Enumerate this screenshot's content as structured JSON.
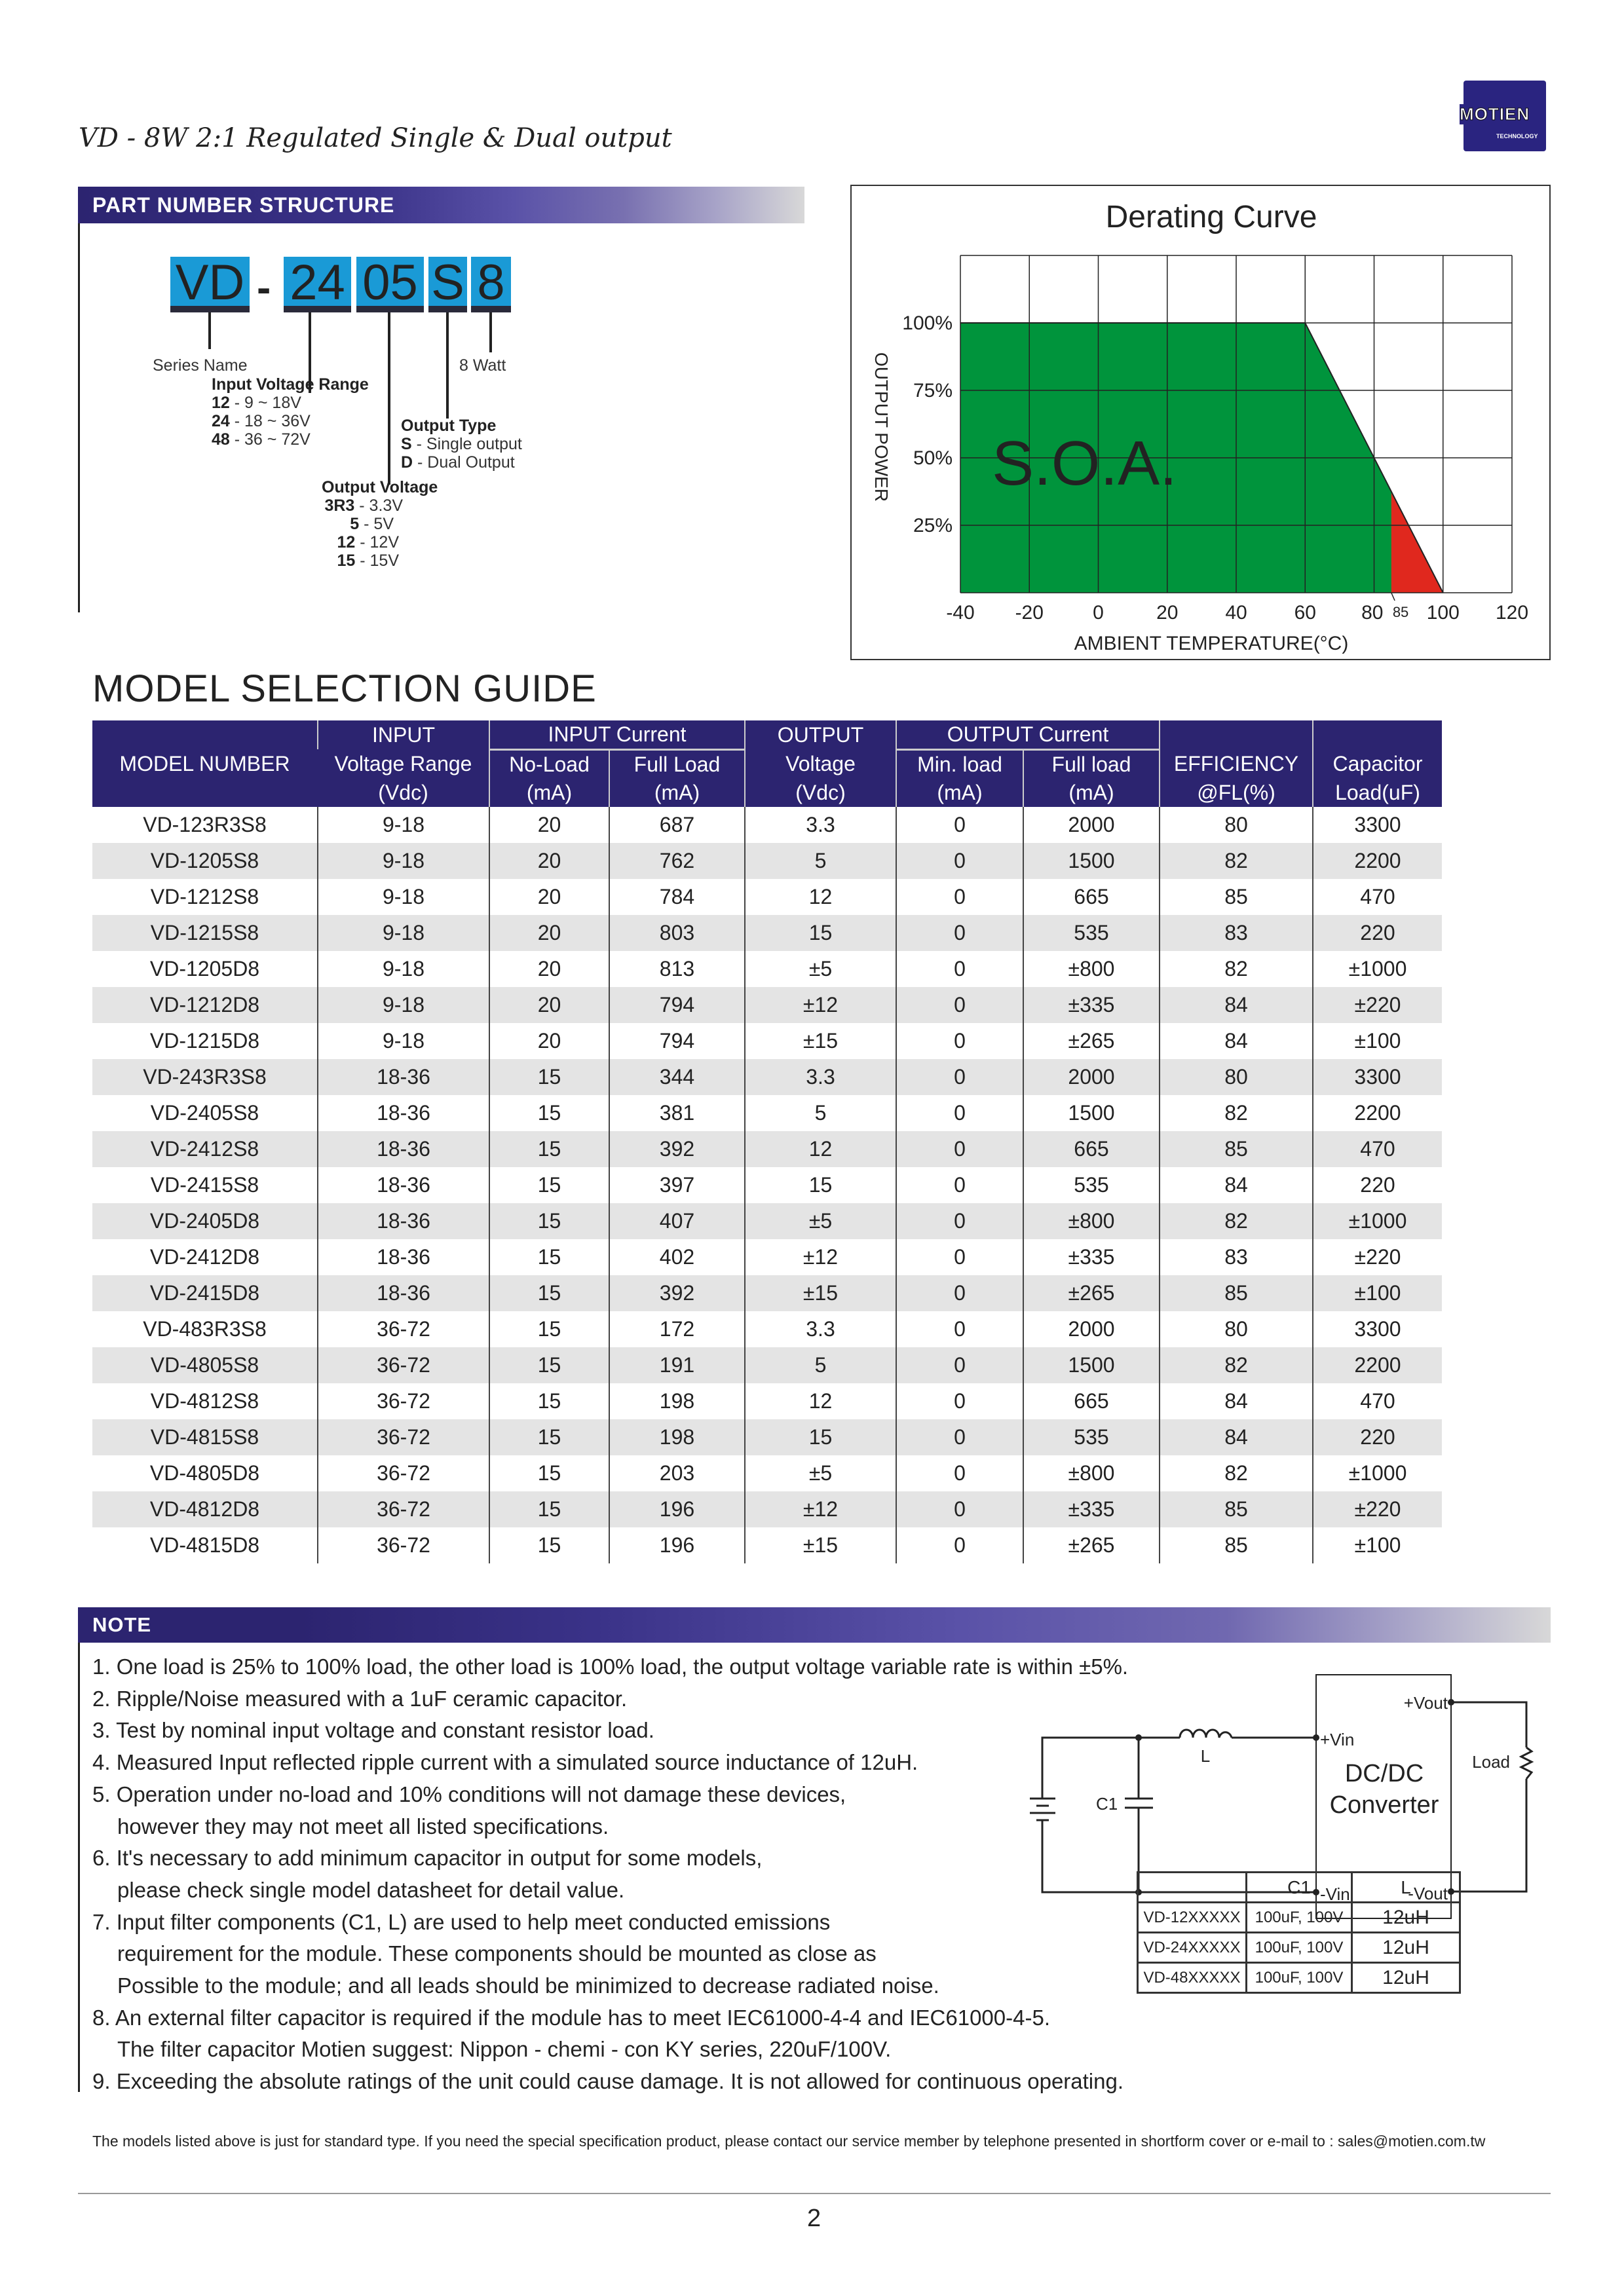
{
  "header": {
    "title": "VD - 8W 2:1 Regulated Single & Dual output",
    "logo_text": "MOTIEN",
    "logo_subtext": "TECHNOLOGY"
  },
  "part_number": {
    "section_title": "PART NUMBER STRUCTURE",
    "segments": [
      "VD",
      "-",
      "24",
      "05",
      "S",
      "8"
    ],
    "series_name": "Series Name",
    "watt": "8 Watt",
    "input_range": {
      "title": "Input Voltage Range",
      "items": [
        {
          "code": "12",
          "text": " - 9 ~ 18V"
        },
        {
          "code": "24",
          "text": " - 18 ~ 36V"
        },
        {
          "code": "48",
          "text": " - 36 ~ 72V"
        }
      ]
    },
    "output_type": {
      "title": "Output Type",
      "items": [
        {
          "code": "S",
          "text": " - Single output"
        },
        {
          "code": "D",
          "text": " - Dual Output"
        }
      ]
    },
    "output_voltage": {
      "title": "Output Voltage",
      "items": [
        {
          "code": "3R3",
          "text": " - 3.3V"
        },
        {
          "code": "5",
          "text": " - 5V"
        },
        {
          "code": "12",
          "text": " - 12V"
        },
        {
          "code": "15",
          "text": " - 15V"
        }
      ]
    }
  },
  "chart_data": {
    "type": "area",
    "title": "Derating Curve",
    "xlabel": "AMBIENT TEMPERATURE(°C)",
    "ylabel": "OUTPUT POWER",
    "x_ticks": [
      -40,
      -20,
      0,
      20,
      40,
      60,
      80,
      100,
      120
    ],
    "extra_x_tick": "85",
    "y_ticks": [
      "25%",
      "50%",
      "75%",
      "100%"
    ],
    "xlim": [
      -40,
      120
    ],
    "ylim": [
      0,
      125
    ],
    "grid": true,
    "curve": {
      "x": [
        -40,
        60,
        100
      ],
      "y": [
        100,
        100,
        0
      ]
    },
    "soa_label": "S.O.A.",
    "red_region_from_x": 85,
    "colors": {
      "soa": "#00943c",
      "red": "#e0281e"
    }
  },
  "selection": {
    "title": "MODEL SELECTION GUIDE",
    "headers": {
      "model": "MODEL NUMBER",
      "input": "INPUT",
      "vrange": "Voltage Range",
      "vdc": "(Vdc)",
      "input_current": "INPUT Current",
      "noload": "No-Load",
      "fullload": "Full Load",
      "ma": "(mA)",
      "output": "OUTPUT",
      "voltage": "Voltage",
      "output_current": "OUTPUT Current",
      "minload": "Min. load",
      "fullload2": "Full load",
      "eff": "EFFICIENCY",
      "eff2": "@FL(%)",
      "cap": "Capacitor",
      "cap2": "Load(uF)"
    },
    "rows": [
      [
        "VD-123R3S8",
        "9-18",
        "20",
        "687",
        "3.3",
        "0",
        "2000",
        "80",
        "3300"
      ],
      [
        "VD-1205S8",
        "9-18",
        "20",
        "762",
        "5",
        "0",
        "1500",
        "82",
        "2200"
      ],
      [
        "VD-1212S8",
        "9-18",
        "20",
        "784",
        "12",
        "0",
        "665",
        "85",
        "470"
      ],
      [
        "VD-1215S8",
        "9-18",
        "20",
        "803",
        "15",
        "0",
        "535",
        "83",
        "220"
      ],
      [
        "VD-1205D8",
        "9-18",
        "20",
        "813",
        "±5",
        "0",
        "±800",
        "82",
        "±1000"
      ],
      [
        "VD-1212D8",
        "9-18",
        "20",
        "794",
        "±12",
        "0",
        "±335",
        "84",
        "±220"
      ],
      [
        "VD-1215D8",
        "9-18",
        "20",
        "794",
        "±15",
        "0",
        "±265",
        "84",
        "±100"
      ],
      [
        "VD-243R3S8",
        "18-36",
        "15",
        "344",
        "3.3",
        "0",
        "2000",
        "80",
        "3300"
      ],
      [
        "VD-2405S8",
        "18-36",
        "15",
        "381",
        "5",
        "0",
        "1500",
        "82",
        "2200"
      ],
      [
        "VD-2412S8",
        "18-36",
        "15",
        "392",
        "12",
        "0",
        "665",
        "85",
        "470"
      ],
      [
        "VD-2415S8",
        "18-36",
        "15",
        "397",
        "15",
        "0",
        "535",
        "84",
        "220"
      ],
      [
        "VD-2405D8",
        "18-36",
        "15",
        "407",
        "±5",
        "0",
        "±800",
        "82",
        "±1000"
      ],
      [
        "VD-2412D8",
        "18-36",
        "15",
        "402",
        "±12",
        "0",
        "±335",
        "83",
        "±220"
      ],
      [
        "VD-2415D8",
        "18-36",
        "15",
        "392",
        "±15",
        "0",
        "±265",
        "85",
        "±100"
      ],
      [
        "VD-483R3S8",
        "36-72",
        "15",
        "172",
        "3.3",
        "0",
        "2000",
        "80",
        "3300"
      ],
      [
        "VD-4805S8",
        "36-72",
        "15",
        "191",
        "5",
        "0",
        "1500",
        "82",
        "2200"
      ],
      [
        "VD-4812S8",
        "36-72",
        "15",
        "198",
        "12",
        "0",
        "665",
        "84",
        "470"
      ],
      [
        "VD-4815S8",
        "36-72",
        "15",
        "198",
        "15",
        "0",
        "535",
        "84",
        "220"
      ],
      [
        "VD-4805D8",
        "36-72",
        "15",
        "203",
        "±5",
        "0",
        "±800",
        "82",
        "±1000"
      ],
      [
        "VD-4812D8",
        "36-72",
        "15",
        "196",
        "±12",
        "0",
        "±335",
        "85",
        "±220"
      ],
      [
        "VD-4815D8",
        "36-72",
        "15",
        "196",
        "±15",
        "0",
        "±265",
        "85",
        "±100"
      ]
    ]
  },
  "note": {
    "title": "NOTE",
    "lines": [
      {
        "t": "1.  One load is 25% to 100% load, the other load is 100% load, the output voltage variable rate is within ±5%.",
        "i": false
      },
      {
        "t": "2. Ripple/Noise measured with  a 1uF ceramic capacitor.",
        "i": false
      },
      {
        "t": "3. Test by nominal input voltage and constant resistor load.",
        "i": false
      },
      {
        "t": "4. Measured Input reflected ripple current with a simulated source inductance of 12uH.",
        "i": false
      },
      {
        "t": "5. Operation under no-load and 10% conditions will not damage these devices,",
        "i": false
      },
      {
        "t": "however they may not meet all listed specifications.",
        "i": true
      },
      {
        "t": "6. It's necessary to add minimum capacitor in output for some models,",
        "i": false
      },
      {
        "t": "please check single model datasheet for detail value.",
        "i": true
      },
      {
        "t": "7. Input filter components (C1, L) are used to help meet conducted emissions",
        "i": false
      },
      {
        "t": "requirement for the module.     These components should be mounted as close as",
        "i": true
      },
      {
        "t": "Possible to the module; and all leads should be minimized to decrease radiated noise.",
        "i": true
      },
      {
        "t": "8. An external filter capacitor is required if the module has to meet  IEC61000-4-4 and IEC61000-4-5.",
        "i": false
      },
      {
        "t": "The filter capacitor Motien suggest: Nippon - chemi - con KY series, 220uF/100V.",
        "i": true
      },
      {
        "t": "9. Exceeding the absolute ratings of the unit could cause damage.  It is not allowed for continuous operating.",
        "i": false
      }
    ]
  },
  "circuit": {
    "vout_pos": "+Vout",
    "vout_neg": "-Vout",
    "vin_pos": "+Vin",
    "vin_neg": "-Vin",
    "converter1": "DC/DC",
    "converter2": "Converter",
    "load": "Load",
    "c1": "C1",
    "l": "L"
  },
  "filter_table": {
    "headers": [
      "",
      "C1",
      "L"
    ],
    "rows": [
      [
        "VD-12XXXXX",
        "100uF, 100V",
        "12uH"
      ],
      [
        "VD-24XXXXX",
        "100uF, 100V",
        "12uH"
      ],
      [
        "VD-48XXXXX",
        "100uF, 100V",
        "12uH"
      ]
    ]
  },
  "footer": {
    "text": "The models listed above is just for standard type. If you need the special specification product, please contact our service member by telephone presented in shortform cover or e-mail to : sales@motien.com.tw",
    "page": "2"
  }
}
